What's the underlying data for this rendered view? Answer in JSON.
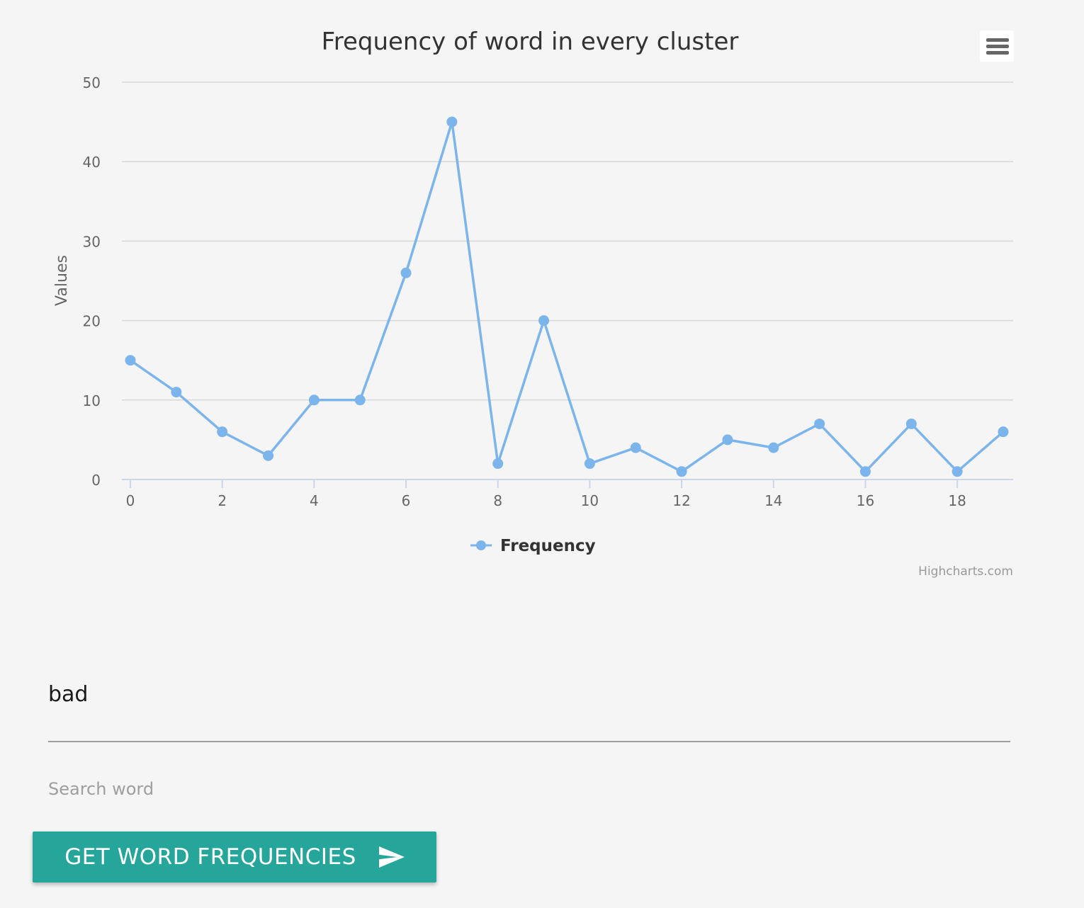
{
  "chart_data": {
    "type": "line",
    "title": "Frequency of word in every cluster",
    "ylabel": "Values",
    "xlabel": "",
    "x": [
      0,
      1,
      2,
      3,
      4,
      5,
      6,
      7,
      8,
      9,
      10,
      11,
      12,
      13,
      14,
      15,
      16,
      17,
      18,
      19
    ],
    "x_ticks": [
      "0",
      "2",
      "4",
      "6",
      "8",
      "10",
      "12",
      "14",
      "16",
      "18"
    ],
    "y_ticks": [
      "0",
      "10",
      "20",
      "30",
      "40",
      "50"
    ],
    "ylim": [
      0,
      50
    ],
    "xlim": [
      0,
      19
    ],
    "series": [
      {
        "name": "Frequency",
        "color": "#7cb5ec",
        "values": [
          15,
          11,
          6,
          3,
          10,
          10,
          26,
          45,
          2,
          20,
          2,
          4,
          1,
          5,
          4,
          7,
          1,
          7,
          1,
          6
        ]
      }
    ],
    "legend": "bottom-center",
    "grid": true,
    "credits": "Highcharts.com"
  },
  "chart_menu": {
    "icon": "hamburger-menu-icon"
  },
  "search": {
    "value": "bad",
    "label": "Search word"
  },
  "submit": {
    "label": "GET WORD FREQUENCIES",
    "icon": "send-icon",
    "color": "#26a69a"
  }
}
